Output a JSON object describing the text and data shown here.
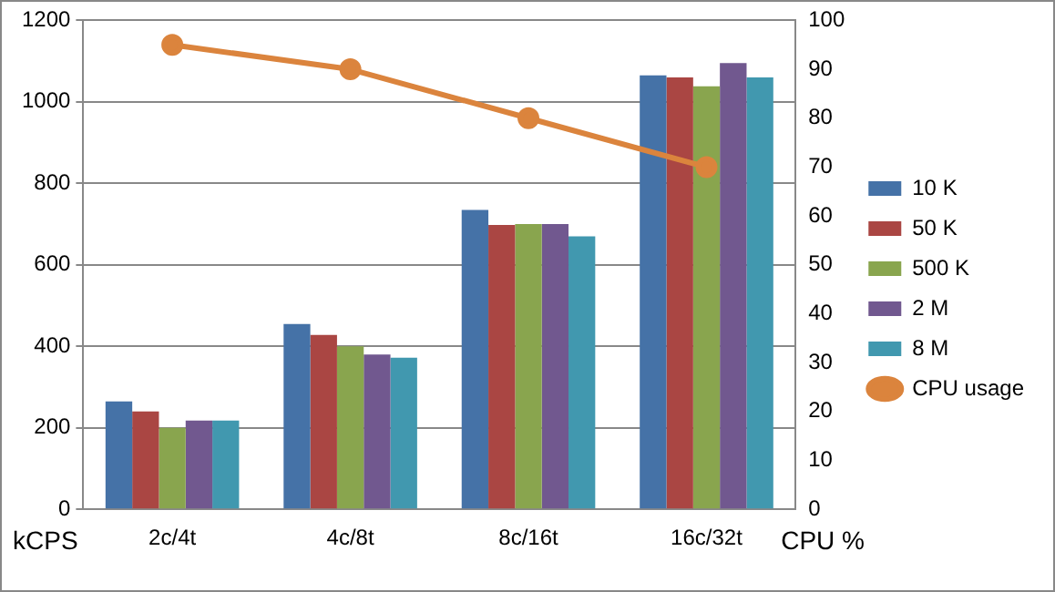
{
  "chart_data": {
    "type": "bar",
    "categories": [
      "2c/4t",
      "4c/8t",
      "8c/16t",
      "16c/32t"
    ],
    "series": [
      {
        "name": "10 K",
        "color": "#4572a7",
        "values": [
          265,
          455,
          735,
          1065
        ]
      },
      {
        "name": "50 K",
        "color": "#aa4643",
        "values": [
          240,
          428,
          698,
          1060
        ]
      },
      {
        "name": "500 K",
        "color": "#89a54e",
        "values": [
          200,
          400,
          700,
          1038
        ]
      },
      {
        "name": "2 M",
        "color": "#71588f",
        "values": [
          218,
          380,
          700,
          1095
        ]
      },
      {
        "name": "8 M",
        "color": "#4198af",
        "values": [
          218,
          372,
          670,
          1060
        ]
      },
      {
        "name": "CPU usage",
        "type": "line",
        "axis": "y2",
        "color": "#db843d",
        "marker": "circle",
        "values": [
          95,
          90,
          80,
          70
        ]
      }
    ],
    "ylabel": "kCPS",
    "y2label": "CPU %",
    "ylim": [
      0,
      1200
    ],
    "yticks": [
      0,
      200,
      400,
      600,
      800,
      1000,
      1200
    ],
    "y2lim": [
      0,
      100
    ],
    "y2ticks": [
      0,
      10,
      20,
      30,
      40,
      50,
      60,
      70,
      80,
      90,
      100
    ],
    "grid": "y",
    "legend": "right"
  }
}
